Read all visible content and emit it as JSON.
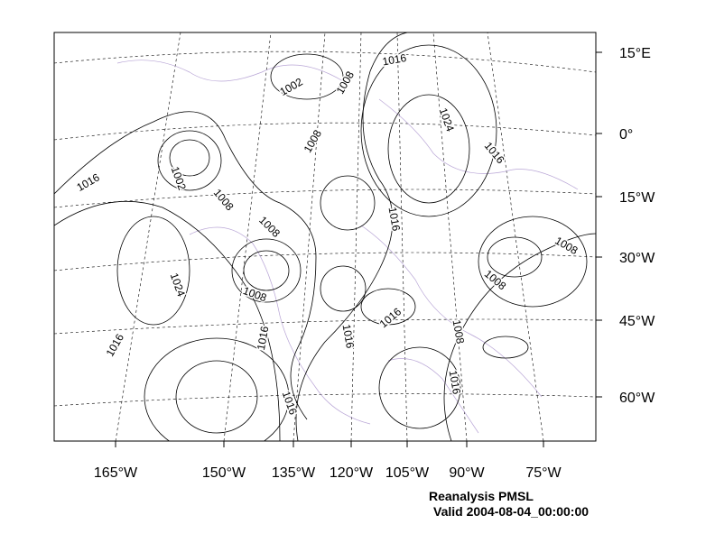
{
  "map": {
    "lon_labels": [
      "165°W",
      "150°W",
      "135°W",
      "120°W",
      "105°W",
      "90°W",
      "75°W"
    ],
    "lat_labels": [
      "15°E",
      "0°",
      "15°W",
      "30°W",
      "45°W",
      "60°W"
    ],
    "contour_labels": [
      "1002",
      "1008",
      "1016",
      "1024",
      "1016",
      "1008",
      "1002",
      "1016",
      "1008",
      "1008",
      "1016",
      "1008",
      "1024",
      "1008",
      "1008",
      "1016",
      "1016",
      "1008",
      "1016",
      "1016",
      "1016",
      "1016"
    ]
  },
  "caption": {
    "title": "Reanalysis PMSL",
    "valid": "Valid 2004-08-04_00:00:00"
  }
}
